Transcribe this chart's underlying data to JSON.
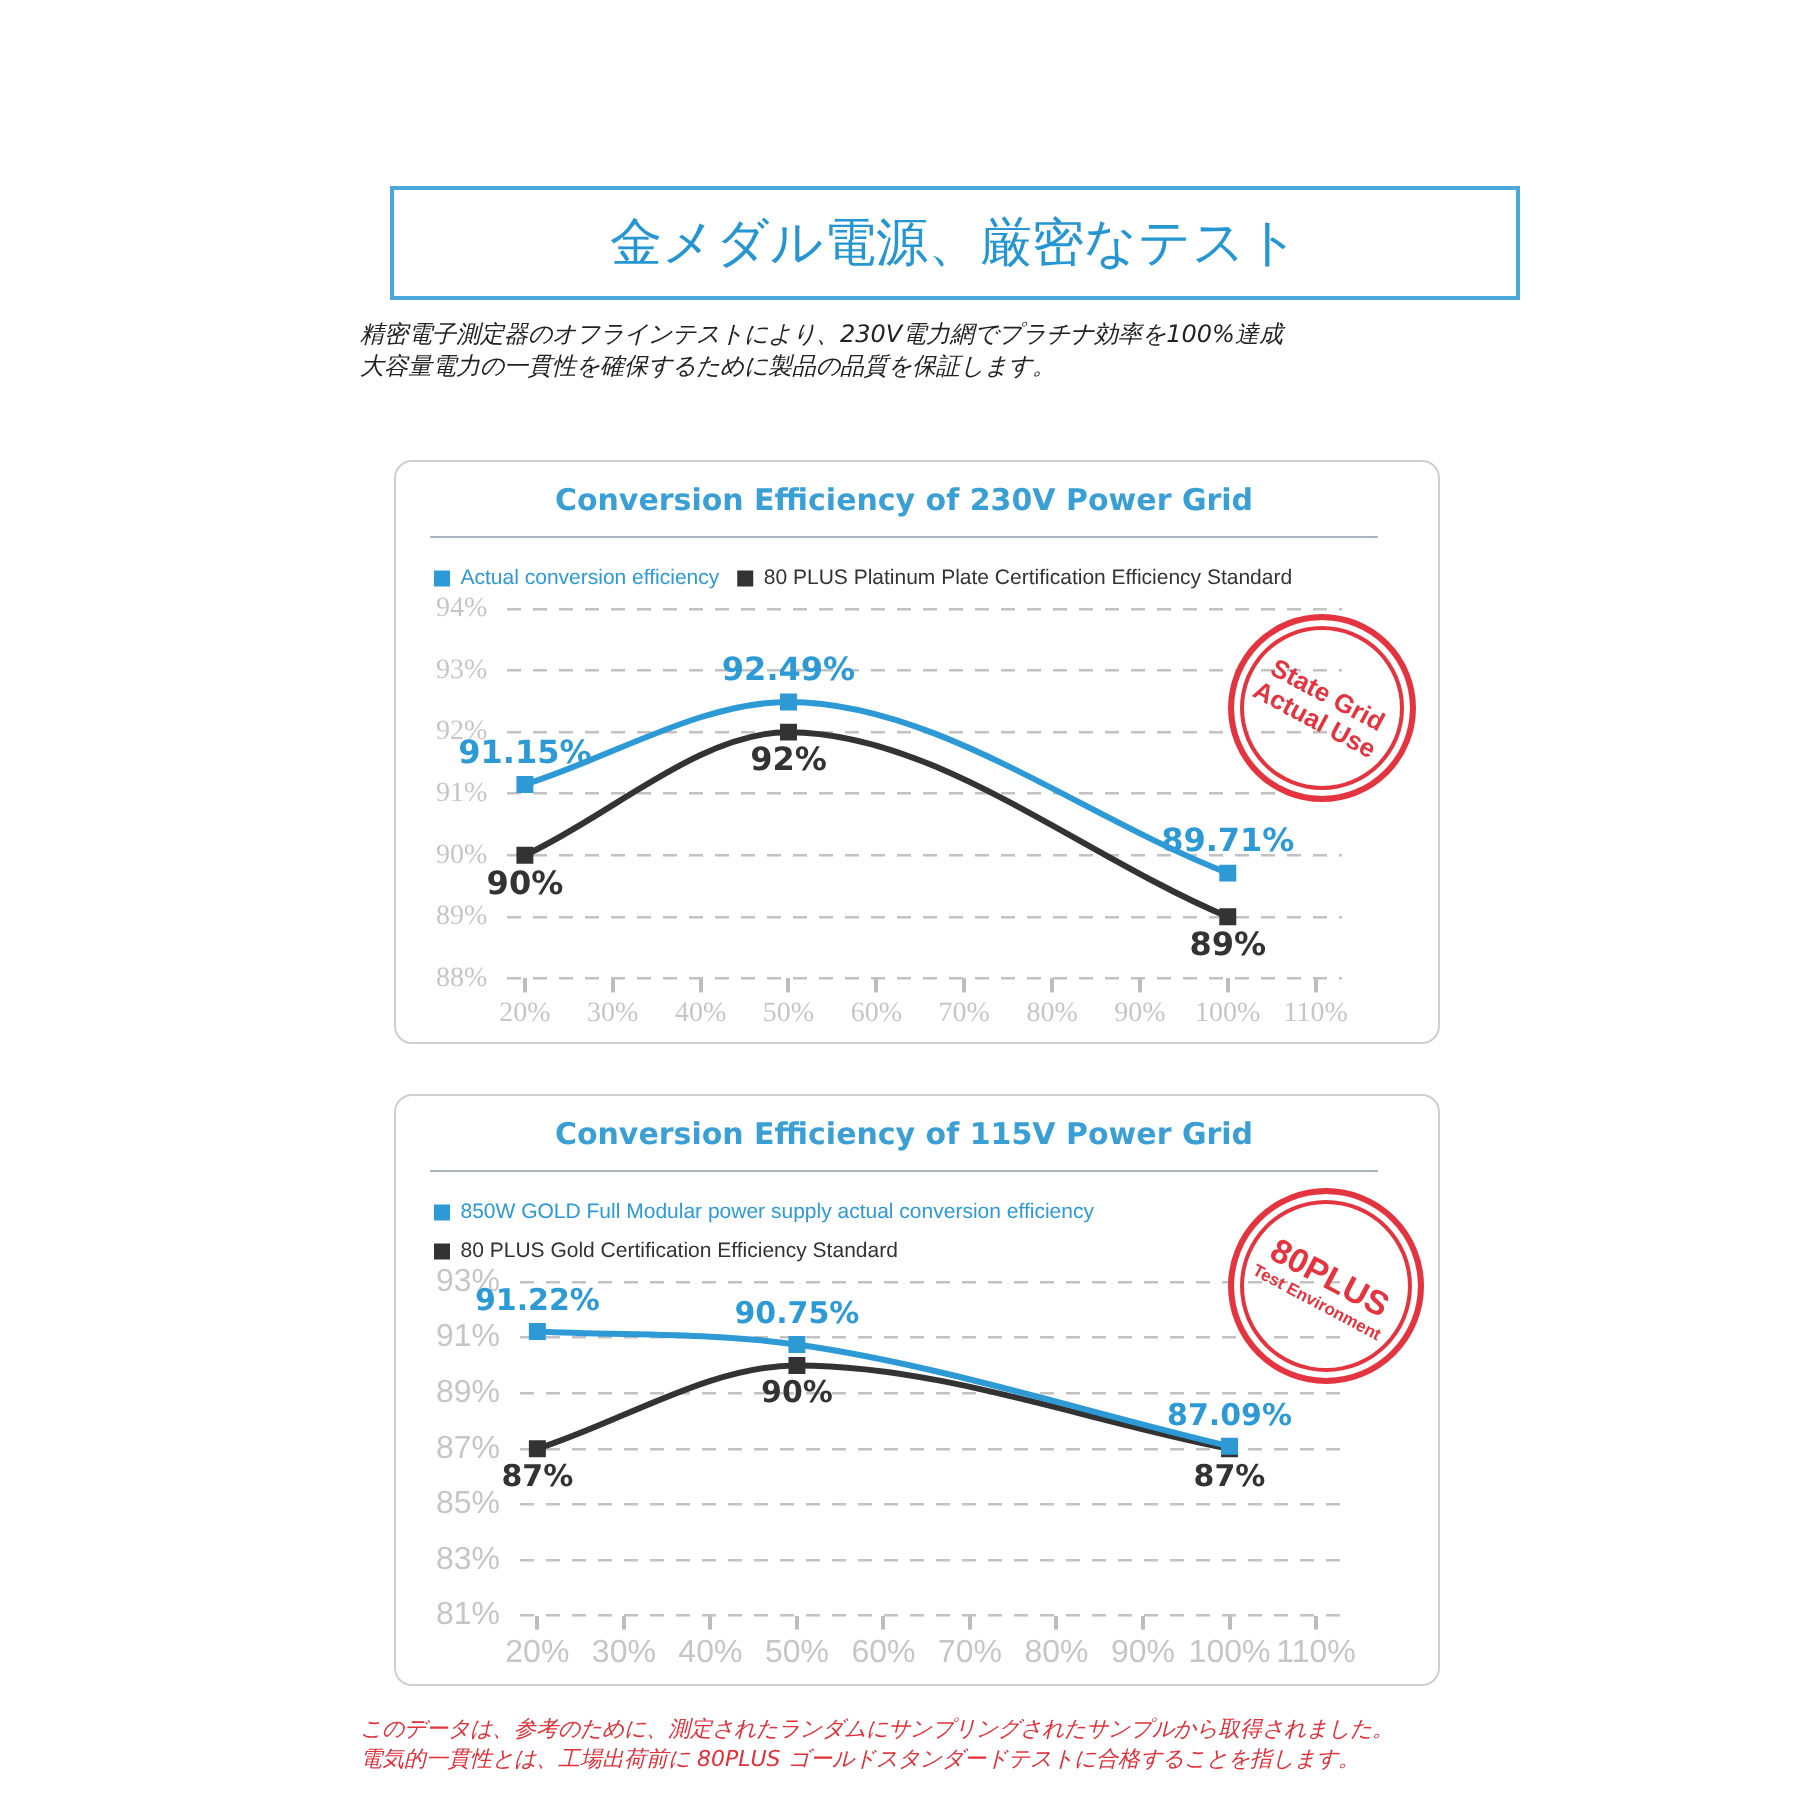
{
  "chart_data": [
    {
      "type": "other",
      "title": "金メダル電源、厳密なテスト",
      "subtitle": "精密電子測定器のオフラインテストにより、230V電力網でプラチナ効率を100%達成大容量電力の一貫性を確保するために製品の品質を保証します。"
    },
    {
      "type": "line",
      "title": "Conversion Efficiency of 230V Power Grid",
      "x": [
        20,
        50,
        100
      ],
      "series": [
        {
          "name": "Actual conversion efficiency",
          "color": "#2d9ad6",
          "values": [
            91.15,
            92.49,
            89.71
          ],
          "value_labels": [
            "91.15%",
            "92.49%",
            "89.71%"
          ]
        },
        {
          "name": "80 PLUS Platinum Plate Certification Efficiency Standard",
          "color": "#333333",
          "values": [
            90,
            92,
            89
          ],
          "value_labels": [
            "90%",
            "92%",
            "89%"
          ]
        }
      ],
      "xlim": [
        18,
        113
      ],
      "xticks": [
        {
          "value": 20,
          "label": "20%"
        },
        {
          "value": 30,
          "label": "30%"
        },
        {
          "value": 40,
          "label": "40%"
        },
        {
          "value": 50,
          "label": "50%"
        },
        {
          "value": 60,
          "label": "60%"
        },
        {
          "value": 70,
          "label": "70%"
        },
        {
          "value": 80,
          "label": "80%"
        },
        {
          "value": 90,
          "label": "90%"
        },
        {
          "value": 100,
          "label": "100%"
        },
        {
          "value": 110,
          "label": "110%"
        }
      ],
      "ylim": [
        88,
        94
      ],
      "yticks": [
        {
          "value": 88,
          "label": "88%"
        },
        {
          "value": 89,
          "label": "89%"
        },
        {
          "value": 90,
          "label": "90%"
        },
        {
          "value": 91,
          "label": "91%"
        },
        {
          "value": 92,
          "label": "92%"
        },
        {
          "value": 93,
          "label": "93%"
        },
        {
          "value": 94,
          "label": "94%"
        }
      ],
      "grid": "y",
      "legend": "top left",
      "marker": "square",
      "line_style": "solid",
      "annotations": [
        "State Grid",
        "Actual Use"
      ]
    },
    {
      "type": "line",
      "title": "Conversion Efficiency of 115V Power Grid",
      "x": [
        20,
        50,
        100
      ],
      "series": [
        {
          "name": "850W GOLD Full Modular power supply actual conversion efficiency",
          "color": "#2d9ad6",
          "values": [
            91.22,
            90.75,
            87.09
          ],
          "value_labels": [
            "91.22%",
            "90.75%",
            "87.09%"
          ]
        },
        {
          "name": "80 PLUS Gold Certification Efficiency Standard",
          "color": "#333333",
          "values": [
            87,
            90,
            87
          ],
          "value_labels": [
            "87%",
            "90%",
            "87%"
          ]
        }
      ],
      "xlim": [
        18,
        113
      ],
      "xticks": [
        {
          "value": 20,
          "label": "20%"
        },
        {
          "value": 30,
          "label": "30%"
        },
        {
          "value": 40,
          "label": "40%"
        },
        {
          "value": 50,
          "label": "50%"
        },
        {
          "value": 60,
          "label": "60%"
        },
        {
          "value": 70,
          "label": "70%"
        },
        {
          "value": 80,
          "label": "80%"
        },
        {
          "value": 90,
          "label": "90%"
        },
        {
          "value": 100,
          "label": "100%"
        },
        {
          "value": 110,
          "label": "110%"
        }
      ],
      "ylim": [
        81,
        93
      ],
      "yticks": [
        {
          "value": 81,
          "label": "81%"
        },
        {
          "value": 83,
          "label": "83%"
        },
        {
          "value": 85,
          "label": "85%"
        },
        {
          "value": 87,
          "label": "87%"
        },
        {
          "value": 89,
          "label": "89%"
        },
        {
          "value": 91,
          "label": "91%"
        },
        {
          "value": 93,
          "label": "93%"
        }
      ],
      "grid": "y",
      "legend": "top left",
      "marker": "square",
      "line_style": "solid",
      "annotations": [
        "80PLUS",
        "Test Environment"
      ]
    },
    {
      "type": "other",
      "annotations": [
        "このデータは、参考のために、測定されたランダムにサンプリングされたサンプルから取得されました。",
        "電気的一貫性とは、工場出荷前に 80PLUS ゴールドスタンダードテストに合格することを指します。"
      ]
    }
  ]
}
